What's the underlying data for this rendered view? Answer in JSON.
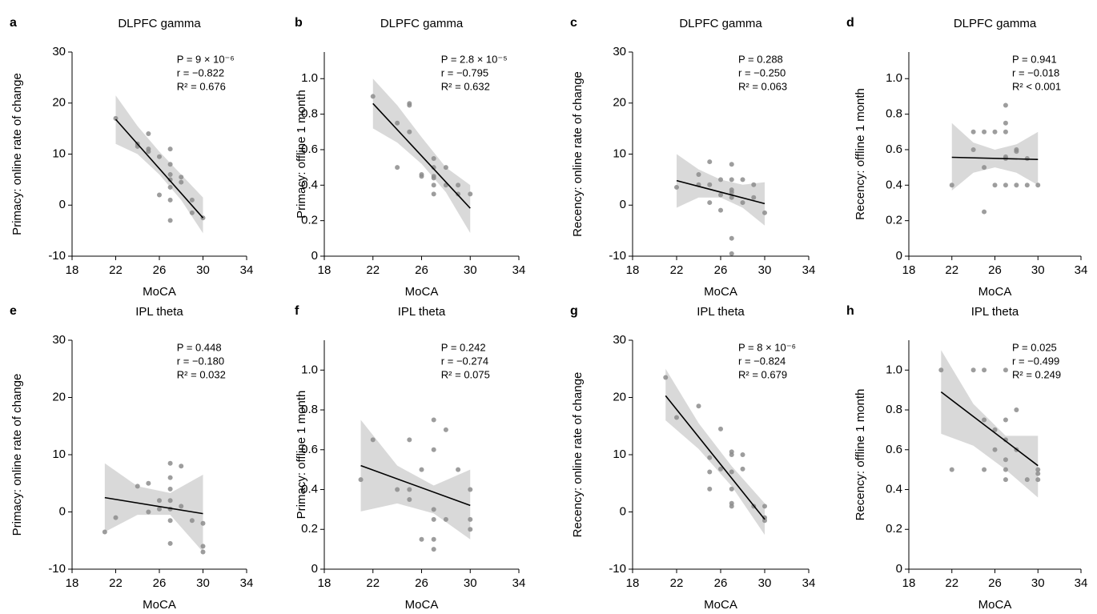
{
  "chart_data": [
    {
      "type": "scatter",
      "panel": "a",
      "title": "DLPFC gamma",
      "xlabel": "MoCA",
      "ylabel": "Primacy: online rate of change",
      "annotations": [
        "P = 9 × 10⁻⁶",
        "r = −0.822",
        "R² = 0.676"
      ],
      "x": [
        22,
        24,
        24,
        25,
        25,
        25,
        26,
        26,
        27,
        27,
        27,
        27,
        27,
        27,
        27,
        28,
        28,
        29,
        29,
        30
      ],
      "y": [
        17,
        12,
        11.5,
        14,
        11,
        10.5,
        9.5,
        2,
        11,
        8,
        6,
        5,
        3.5,
        -3,
        1,
        5.5,
        4.5,
        1,
        -1.5,
        -2.5
      ],
      "fit": {
        "x": [
          22,
          30
        ],
        "y": [
          16.8,
          -2.5
        ]
      },
      "band": {
        "x": [
          22,
          24,
          26,
          28,
          30
        ],
        "upper": [
          21.5,
          15.5,
          10.5,
          6,
          1.5
        ],
        "lower": [
          12,
          10,
          6,
          1,
          -5.5
        ]
      },
      "xlim": [
        18,
        34
      ],
      "ylim": [
        -10,
        30
      ],
      "xticks": [
        18,
        22,
        26,
        30,
        34
      ],
      "yticks": [
        -10,
        0,
        10,
        20,
        30
      ],
      "color": "#8c8c8c",
      "line_color": "#000000",
      "band_color": "#d9d9d9"
    },
    {
      "type": "scatter",
      "panel": "b",
      "title": "DLPFC gamma",
      "xlabel": "MoCA",
      "ylabel": "Primacy: offline 1 month",
      "annotations": [
        "P = 2.8 × 10⁻⁵",
        "r = −0.795",
        "R² = 0.632"
      ],
      "x": [
        22,
        24,
        24,
        25,
        25,
        25,
        26,
        26,
        27,
        27,
        27,
        27,
        27,
        27,
        28,
        28,
        29,
        29,
        30
      ],
      "y": [
        0.9,
        0.75,
        0.5,
        0.85,
        0.86,
        0.7,
        0.46,
        0.45,
        0.55,
        0.5,
        0.45,
        0.44,
        0.4,
        0.35,
        0.5,
        0.4,
        0.4,
        0.35,
        0.35
      ],
      "fit": {
        "x": [
          22,
          30
        ],
        "y": [
          0.86,
          0.27
        ]
      },
      "band": {
        "x": [
          22,
          24,
          26,
          28,
          30
        ],
        "upper": [
          1.0,
          0.85,
          0.67,
          0.5,
          0.4
        ],
        "lower": [
          0.72,
          0.64,
          0.52,
          0.36,
          0.13
        ]
      },
      "xlim": [
        18,
        34
      ],
      "ylim": [
        0,
        1.15
      ],
      "xticks": [
        18,
        22,
        26,
        30,
        34
      ],
      "yticks": [
        0,
        0.2,
        0.4,
        0.6,
        0.8,
        {
          "value": 1,
          "label": "1.0"
        }
      ],
      "color": "#8c8c8c",
      "line_color": "#000000",
      "band_color": "#d9d9d9"
    },
    {
      "type": "scatter",
      "panel": "c",
      "title": "DLPFC gamma",
      "xlabel": "MoCA",
      "ylabel": "Recency: online rate of change",
      "annotations": [
        "P = 0.288",
        "r = −0.250",
        "R² = 0.063"
      ],
      "x": [
        22,
        24,
        24,
        25,
        25,
        25,
        26,
        26,
        26,
        27,
        27,
        27,
        27,
        27,
        27,
        27,
        28,
        28,
        29,
        29,
        30
      ],
      "y": [
        3.5,
        6,
        4,
        8.5,
        4,
        0.5,
        5,
        2,
        -1,
        8,
        5,
        3,
        2.5,
        1.5,
        -6.5,
        -9.5,
        5,
        0.5,
        4,
        1.5,
        -1.5
      ],
      "fit": {
        "x": [
          22,
          30
        ],
        "y": [
          4.8,
          0.3
        ]
      },
      "band": {
        "x": [
          22,
          24,
          26,
          28,
          30
        ],
        "upper": [
          10,
          7,
          5,
          4,
          4.5
        ],
        "lower": [
          -0.5,
          1.5,
          1.5,
          -0.5,
          -4
        ]
      },
      "xlim": [
        18,
        34
      ],
      "ylim": [
        -10,
        30
      ],
      "xticks": [
        18,
        22,
        26,
        30,
        34
      ],
      "yticks": [
        -10,
        0,
        10,
        20,
        30
      ],
      "color": "#8c8c8c",
      "line_color": "#000000",
      "band_color": "#d9d9d9"
    },
    {
      "type": "scatter",
      "panel": "d",
      "title": "DLPFC gamma",
      "xlabel": "MoCA",
      "ylabel": "Recency: offline 1 month",
      "annotations": [
        "P = 0.941",
        "r = −0.018",
        "R² < 0.001"
      ],
      "x": [
        22,
        24,
        24,
        25,
        25,
        25,
        26,
        26,
        27,
        27,
        27,
        27,
        27,
        27,
        28,
        28,
        28,
        29,
        29,
        30
      ],
      "y": [
        0.4,
        0.7,
        0.6,
        0.7,
        0.5,
        0.25,
        0.7,
        0.4,
        0.85,
        0.75,
        0.7,
        0.55,
        0.56,
        0.4,
        0.6,
        0.59,
        0.4,
        0.55,
        0.4,
        0.4
      ],
      "fit": {
        "x": [
          22,
          30
        ],
        "y": [
          0.557,
          0.545
        ]
      },
      "band": {
        "x": [
          22,
          24,
          26,
          28,
          30
        ],
        "upper": [
          0.75,
          0.64,
          0.6,
          0.63,
          0.7
        ],
        "lower": [
          0.37,
          0.47,
          0.5,
          0.47,
          0.4
        ]
      },
      "xlim": [
        18,
        34
      ],
      "ylim": [
        0,
        1.15
      ],
      "xticks": [
        18,
        22,
        26,
        30,
        34
      ],
      "yticks": [
        0,
        0.2,
        0.4,
        0.6,
        0.8,
        {
          "value": 1,
          "label": "1.0"
        }
      ],
      "color": "#8c8c8c",
      "line_color": "#000000",
      "band_color": "#d9d9d9"
    },
    {
      "type": "scatter",
      "panel": "e",
      "title": "IPL theta",
      "xlabel": "MoCA",
      "ylabel": "Primacy: online rate of change",
      "annotations": [
        "P = 0.448",
        "r = −0.180",
        "R² = 0.032"
      ],
      "x": [
        21,
        22,
        24,
        25,
        25,
        26,
        26,
        27,
        27,
        27,
        27,
        27,
        27,
        27,
        28,
        28,
        29,
        30,
        30,
        30
      ],
      "y": [
        -3.5,
        -1,
        4.5,
        5,
        0,
        2,
        0.5,
        8.5,
        6,
        4,
        2,
        0.5,
        -1.5,
        -5.5,
        8,
        1,
        -1.5,
        -2,
        -6,
        -7
      ],
      "fit": {
        "x": [
          21,
          30
        ],
        "y": [
          2.5,
          -0.3
        ]
      },
      "band": {
        "x": [
          21,
          24,
          27,
          30
        ],
        "upper": [
          8.5,
          4.5,
          3.3,
          6.5
        ],
        "lower": [
          -3.5,
          -0.5,
          -0.5,
          -7
        ]
      },
      "xlim": [
        18,
        34
      ],
      "ylim": [
        -10,
        30
      ],
      "xticks": [
        18,
        22,
        26,
        30,
        34
      ],
      "yticks": [
        -10,
        0,
        10,
        20,
        30
      ],
      "color": "#8c8c8c",
      "line_color": "#000000",
      "band_color": "#d9d9d9"
    },
    {
      "type": "scatter",
      "panel": "f",
      "title": "IPL theta",
      "xlabel": "MoCA",
      "ylabel": "Primacy: offline 1 month",
      "annotations": [
        "P = 0.242",
        "r = −0.274",
        "R² = 0.075"
      ],
      "x": [
        21,
        22,
        24,
        25,
        25,
        25,
        26,
        26,
        27,
        27,
        27,
        27,
        27,
        27,
        28,
        28,
        29,
        30,
        30,
        30
      ],
      "y": [
        0.45,
        0.65,
        0.4,
        0.65,
        0.4,
        0.35,
        0.5,
        0.15,
        0.75,
        0.6,
        0.3,
        0.25,
        0.15,
        0.1,
        0.7,
        0.25,
        0.5,
        0.4,
        0.25,
        0.2
      ],
      "fit": {
        "x": [
          21,
          30
        ],
        "y": [
          0.52,
          0.32
        ]
      },
      "band": {
        "x": [
          21,
          24,
          27,
          30
        ],
        "upper": [
          0.75,
          0.52,
          0.42,
          0.5
        ],
        "lower": [
          0.29,
          0.33,
          0.28,
          0.15
        ]
      },
      "xlim": [
        18,
        34
      ],
      "ylim": [
        0,
        1.15
      ],
      "xticks": [
        18,
        22,
        26,
        30,
        34
      ],
      "yticks": [
        0,
        0.2,
        0.4,
        0.6,
        0.8,
        {
          "value": 1,
          "label": "1.0"
        }
      ],
      "color": "#8c8c8c",
      "line_color": "#000000",
      "band_color": "#d9d9d9"
    },
    {
      "type": "scatter",
      "panel": "g",
      "title": "IPL theta",
      "xlabel": "MoCA",
      "ylabel": "Recency: online rate of change",
      "annotations": [
        "P = 8 × 10⁻⁶",
        "r = −0.824",
        "R² = 0.679"
      ],
      "x": [
        21,
        22,
        24,
        25,
        25,
        25,
        26,
        26,
        27,
        27,
        27,
        27,
        27,
        27,
        28,
        28,
        29,
        30,
        30,
        30
      ],
      "y": [
        23.5,
        16.5,
        18.5,
        9.5,
        7,
        4,
        14.5,
        7.5,
        10.5,
        10,
        7,
        4,
        1.5,
        1,
        10,
        7.5,
        1,
        1,
        -1,
        -1.5
      ],
      "fit": {
        "x": [
          21,
          30
        ],
        "y": [
          20.3,
          -1.3
        ]
      },
      "band": {
        "x": [
          21,
          24,
          27,
          30
        ],
        "upper": [
          25,
          15.5,
          8,
          1.5
        ],
        "lower": [
          16,
          11,
          4.5,
          -4
        ]
      },
      "xlim": [
        18,
        34
      ],
      "ylim": [
        -10,
        30
      ],
      "xticks": [
        18,
        22,
        26,
        30,
        34
      ],
      "yticks": [
        -10,
        0,
        10,
        20,
        30
      ],
      "color": "#8c8c8c",
      "line_color": "#000000",
      "band_color": "#d9d9d9"
    },
    {
      "type": "scatter",
      "panel": "h",
      "title": "IPL theta",
      "xlabel": "MoCA",
      "ylabel": "Recency: offline 1 month",
      "annotations": [
        "P = 0.025",
        "r = −0.499",
        "R² = 0.249"
      ],
      "x": [
        21,
        22,
        24,
        25,
        25,
        25,
        26,
        26,
        27,
        27,
        27,
        27,
        27,
        27,
        28,
        28,
        29,
        30,
        30,
        30
      ],
      "y": [
        1.0,
        0.5,
        1.0,
        1.0,
        0.75,
        0.5,
        0.7,
        0.6,
        1.0,
        0.75,
        0.65,
        0.55,
        0.5,
        0.45,
        0.8,
        0.6,
        0.45,
        0.5,
        0.45,
        0.48
      ],
      "fit": {
        "x": [
          21,
          30
        ],
        "y": [
          0.89,
          0.52
        ]
      },
      "band": {
        "x": [
          21,
          24,
          27,
          30
        ],
        "upper": [
          1.1,
          0.83,
          0.67,
          0.67
        ],
        "lower": [
          0.68,
          0.62,
          0.5,
          0.36
        ]
      },
      "xlim": [
        18,
        34
      ],
      "ylim": [
        0,
        1.15
      ],
      "xticks": [
        18,
        22,
        26,
        30,
        34
      ],
      "yticks": [
        0,
        0.2,
        0.4,
        0.6,
        0.8,
        {
          "value": 1,
          "label": "1.0"
        }
      ],
      "color": "#8c8c8c",
      "line_color": "#000000",
      "band_color": "#d9d9d9"
    }
  ]
}
